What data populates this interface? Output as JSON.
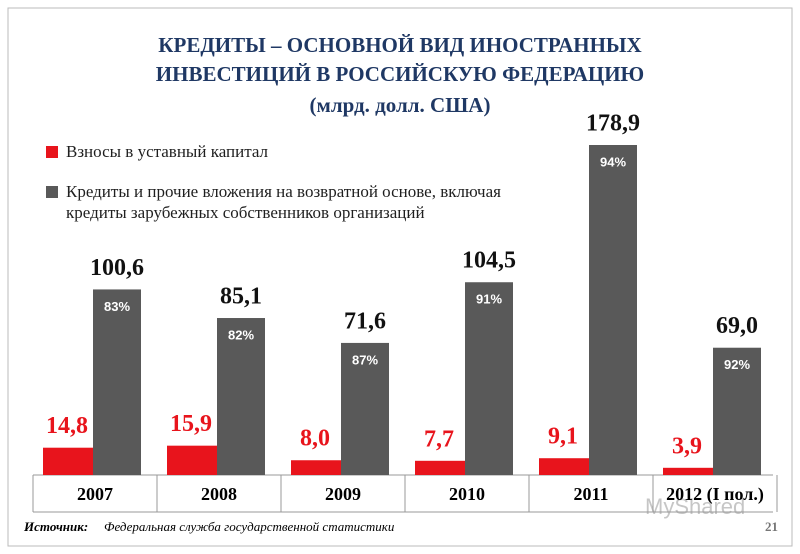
{
  "chart_data": {
    "type": "bar",
    "title": [
      "КРЕДИТЫ – ОСНОВНОЙ ВИД ИНОСТРАННЫХ",
      "ИНВЕСТИЦИЙ В РОССИЙСКУЮ ФЕДЕРАЦИЮ",
      "(млрд. долл. США)"
    ],
    "categories": [
      "2007",
      "2008",
      "2009",
      "2010",
      "2011",
      "2012 (I пол.)"
    ],
    "series": [
      {
        "name": "Взносы в уставный капитал",
        "color": "#e8141c",
        "values": [
          14.8,
          15.9,
          8.0,
          7.7,
          9.1,
          3.9
        ],
        "value_labels": [
          "14,8",
          "15,9",
          "8,0",
          "7,7",
          "9,1",
          "3,9"
        ]
      },
      {
        "name": "Кредиты и прочие вложения на возвратной основе, включая кредиты зарубежных собственников организаций",
        "color": "#595959",
        "values": [
          100.6,
          85.1,
          71.6,
          104.5,
          178.9,
          69.0
        ],
        "value_labels": [
          "100,6",
          "85,1",
          "71,6",
          "104,5",
          "178,9",
          "69,0"
        ],
        "share_labels": [
          "83%",
          "82%",
          "87%",
          "91%",
          "94%",
          "92%"
        ]
      }
    ],
    "source_label": "Источник:",
    "source_text": "Федеральная служба государственной статистики",
    "page_number": "21",
    "watermark": "MyShared"
  }
}
